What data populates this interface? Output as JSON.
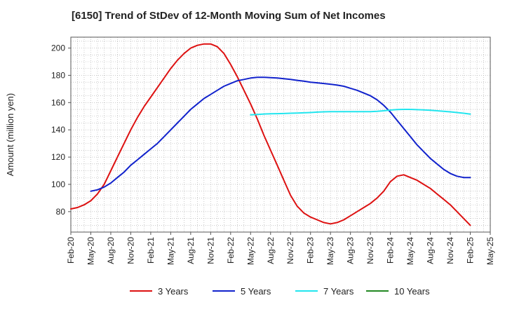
{
  "chart_data": {
    "type": "line",
    "title": "[6150]  Trend of StDev of 12-Month Moving Sum of Net Incomes",
    "ylabel": "Amount (million yen)",
    "xlabel": "",
    "ylim": [
      65,
      208
    ],
    "xlim": [
      "2020-02",
      "2025-05"
    ],
    "y_ticks": [
      80,
      100,
      120,
      140,
      160,
      180,
      200
    ],
    "x_ticks": [
      "Feb-20",
      "May-20",
      "Aug-20",
      "Nov-20",
      "Feb-21",
      "May-21",
      "Aug-21",
      "Nov-21",
      "Feb-22",
      "May-22",
      "Aug-22",
      "Nov-22",
      "Feb-23",
      "May-23",
      "Aug-23",
      "Nov-23",
      "Feb-24",
      "May-24",
      "Aug-24",
      "Nov-24",
      "Feb-25",
      "May-25"
    ],
    "grid": true,
    "legend_position": "bottom",
    "series": [
      {
        "name": "3 Years",
        "color": "#dd1111",
        "points": [
          [
            "2020-02",
            82
          ],
          [
            "2020-03",
            83
          ],
          [
            "2020-04",
            85
          ],
          [
            "2020-05",
            88
          ],
          [
            "2020-06",
            93
          ],
          [
            "2020-07",
            100
          ],
          [
            "2020-08",
            110
          ],
          [
            "2020-09",
            120
          ],
          [
            "2020-10",
            130
          ],
          [
            "2020-11",
            140
          ],
          [
            "2020-12",
            149
          ],
          [
            "2021-01",
            157
          ],
          [
            "2021-02",
            164
          ],
          [
            "2021-03",
            171
          ],
          [
            "2021-04",
            178
          ],
          [
            "2021-05",
            185
          ],
          [
            "2021-06",
            191
          ],
          [
            "2021-07",
            196
          ],
          [
            "2021-08",
            200
          ],
          [
            "2021-09",
            202
          ],
          [
            "2021-10",
            203
          ],
          [
            "2021-11",
            203
          ],
          [
            "2021-12",
            201
          ],
          [
            "2022-01",
            196
          ],
          [
            "2022-02",
            188
          ],
          [
            "2022-03",
            179
          ],
          [
            "2022-04",
            169
          ],
          [
            "2022-05",
            159
          ],
          [
            "2022-06",
            148
          ],
          [
            "2022-07",
            136
          ],
          [
            "2022-08",
            125
          ],
          [
            "2022-09",
            114
          ],
          [
            "2022-10",
            103
          ],
          [
            "2022-11",
            92
          ],
          [
            "2022-12",
            84
          ],
          [
            "2023-01",
            79
          ],
          [
            "2023-02",
            76
          ],
          [
            "2023-03",
            74
          ],
          [
            "2023-04",
            72
          ],
          [
            "2023-05",
            71
          ],
          [
            "2023-06",
            72
          ],
          [
            "2023-07",
            74
          ],
          [
            "2023-08",
            77
          ],
          [
            "2023-09",
            80
          ],
          [
            "2023-10",
            83
          ],
          [
            "2023-11",
            86
          ],
          [
            "2023-12",
            90
          ],
          [
            "2024-01",
            95
          ],
          [
            "2024-02",
            102
          ],
          [
            "2024-03",
            106
          ],
          [
            "2024-04",
            107
          ],
          [
            "2024-05",
            105
          ],
          [
            "2024-06",
            103
          ],
          [
            "2024-07",
            100
          ],
          [
            "2024-08",
            97
          ],
          [
            "2024-09",
            93
          ],
          [
            "2024-10",
            89
          ],
          [
            "2024-11",
            85
          ],
          [
            "2024-12",
            80
          ],
          [
            "2025-01",
            75
          ],
          [
            "2025-02",
            70
          ]
        ]
      },
      {
        "name": "5 Years",
        "color": "#1122cc",
        "points": [
          [
            "2020-05",
            95
          ],
          [
            "2020-06",
            96
          ],
          [
            "2020-07",
            98
          ],
          [
            "2020-08",
            101
          ],
          [
            "2020-09",
            105
          ],
          [
            "2020-10",
            109
          ],
          [
            "2020-11",
            114
          ],
          [
            "2020-12",
            118
          ],
          [
            "2021-01",
            122
          ],
          [
            "2021-02",
            126
          ],
          [
            "2021-03",
            130
          ],
          [
            "2021-04",
            135
          ],
          [
            "2021-05",
            140
          ],
          [
            "2021-06",
            145
          ],
          [
            "2021-07",
            150
          ],
          [
            "2021-08",
            155
          ],
          [
            "2021-09",
            159
          ],
          [
            "2021-10",
            163
          ],
          [
            "2021-11",
            166
          ],
          [
            "2021-12",
            169
          ],
          [
            "2022-01",
            172
          ],
          [
            "2022-02",
            174
          ],
          [
            "2022-03",
            176
          ],
          [
            "2022-04",
            177
          ],
          [
            "2022-05",
            178
          ],
          [
            "2022-06",
            178.5
          ],
          [
            "2022-07",
            178.5
          ],
          [
            "2022-08",
            178.3
          ],
          [
            "2022-09",
            178
          ],
          [
            "2022-10",
            177.5
          ],
          [
            "2022-11",
            177
          ],
          [
            "2022-12",
            176.3
          ],
          [
            "2023-01",
            175.7
          ],
          [
            "2023-02",
            175
          ],
          [
            "2023-03",
            174.5
          ],
          [
            "2023-04",
            174
          ],
          [
            "2023-05",
            173.5
          ],
          [
            "2023-06",
            172.8
          ],
          [
            "2023-07",
            172
          ],
          [
            "2023-08",
            170.5
          ],
          [
            "2023-09",
            169
          ],
          [
            "2023-10",
            167
          ],
          [
            "2023-11",
            165
          ],
          [
            "2023-12",
            162
          ],
          [
            "2024-01",
            158
          ],
          [
            "2024-02",
            153
          ],
          [
            "2024-03",
            147
          ],
          [
            "2024-04",
            141
          ],
          [
            "2024-05",
            135
          ],
          [
            "2024-06",
            129
          ],
          [
            "2024-07",
            124
          ],
          [
            "2024-08",
            119
          ],
          [
            "2024-09",
            115
          ],
          [
            "2024-10",
            111
          ],
          [
            "2024-11",
            108
          ],
          [
            "2024-12",
            106
          ],
          [
            "2025-01",
            105
          ],
          [
            "2025-02",
            105
          ]
        ]
      },
      {
        "name": "7 Years",
        "color": "#22e5ee",
        "points": [
          [
            "2022-05",
            151
          ],
          [
            "2022-06",
            151.3
          ],
          [
            "2022-07",
            151.6
          ],
          [
            "2022-08",
            151.8
          ],
          [
            "2022-09",
            151.9
          ],
          [
            "2022-10",
            152
          ],
          [
            "2022-11",
            152.2
          ],
          [
            "2022-12",
            152.3
          ],
          [
            "2023-01",
            152.5
          ],
          [
            "2023-02",
            152.7
          ],
          [
            "2023-03",
            153
          ],
          [
            "2023-04",
            153.2
          ],
          [
            "2023-05",
            153.3
          ],
          [
            "2023-06",
            153.3
          ],
          [
            "2023-07",
            153.3
          ],
          [
            "2023-08",
            153.3
          ],
          [
            "2023-09",
            153.3
          ],
          [
            "2023-10",
            153.3
          ],
          [
            "2023-11",
            153.3
          ],
          [
            "2023-12",
            153.6
          ],
          [
            "2024-01",
            154
          ],
          [
            "2024-02",
            154.5
          ],
          [
            "2024-03",
            154.9
          ],
          [
            "2024-04",
            155
          ],
          [
            "2024-05",
            155
          ],
          [
            "2024-06",
            154.8
          ],
          [
            "2024-07",
            154.6
          ],
          [
            "2024-08",
            154.4
          ],
          [
            "2024-09",
            154
          ],
          [
            "2024-10",
            153.6
          ],
          [
            "2024-11",
            153.2
          ],
          [
            "2024-12",
            152.7
          ],
          [
            "2025-01",
            152.2
          ],
          [
            "2025-02",
            151.5
          ]
        ]
      },
      {
        "name": "10 Years",
        "color": "#228822",
        "points": []
      }
    ]
  }
}
